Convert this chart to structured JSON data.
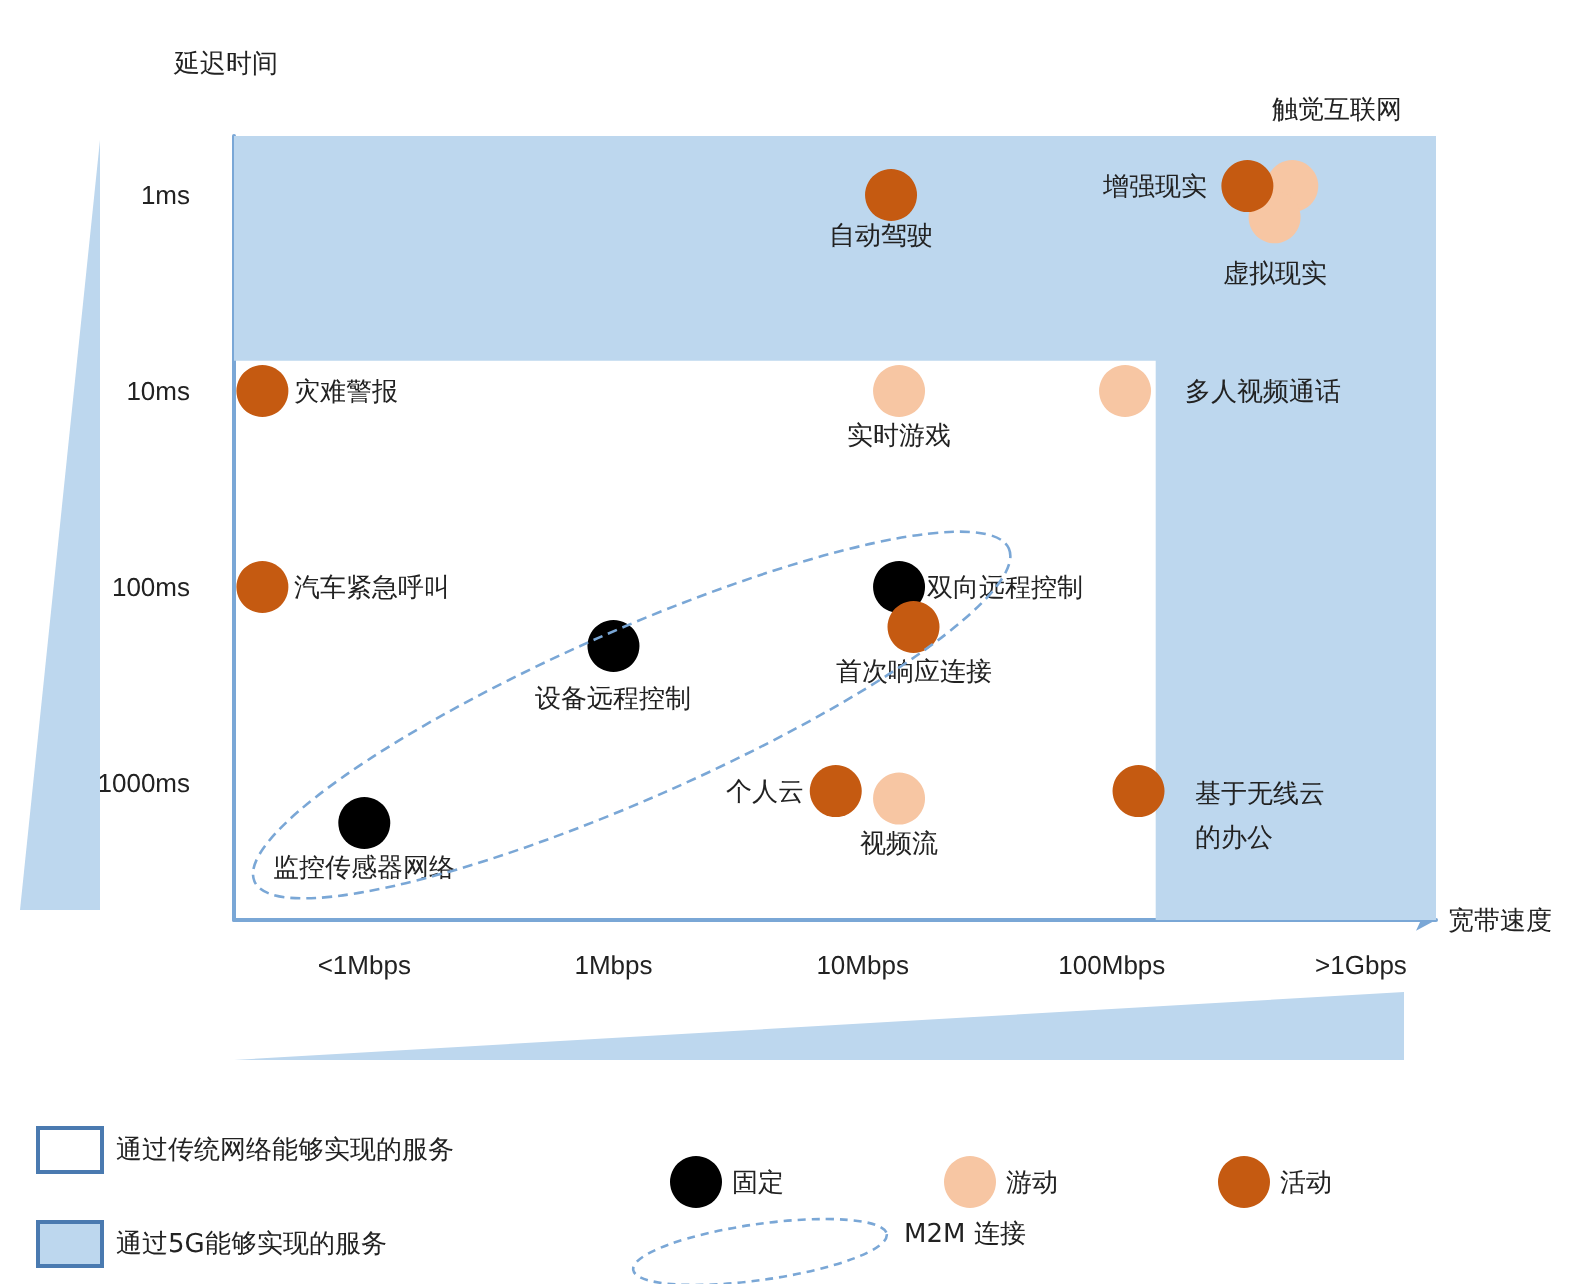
{
  "chart_data": {
    "type": "scatter",
    "xlabel": "宽带速度",
    "ylabel": "延迟时间",
    "log": "xy",
    "xlim": [
      0.03,
      2000
    ],
    "xticks": [
      {
        "value": 0.1,
        "label": "<1Mbps"
      },
      {
        "value": 1,
        "label": "1Mbps"
      },
      {
        "value": 10,
        "label": "10Mbps"
      },
      {
        "value": 100,
        "label": "100Mbps"
      },
      {
        "value": 1000,
        "label": ">1Gbps"
      }
    ],
    "ylim": [
      5000,
      0.5
    ],
    "yticks": [
      {
        "value": 1,
        "label": "1ms"
      },
      {
        "value": 10,
        "label": "10ms"
      },
      {
        "value": 100,
        "label": "100ms"
      },
      {
        "value": 1000,
        "label": "1000ms"
      }
    ],
    "grid": false,
    "legend": "bottom",
    "marker": "circle",
    "series": [
      {
        "name": "固定",
        "color": "#000000",
        "x": [
          0.1,
          1,
          14
        ],
        "values": [
          1600,
          200,
          100
        ]
      },
      {
        "name": "游动",
        "color": "#f7c6a3",
        "x": [
          14,
          113,
          530,
          450,
          14
        ],
        "values": [
          10,
          10,
          0.9,
          1.3,
          1200
        ]
      },
      {
        "name": "活动",
        "color": "#c55a11",
        "x": [
          13,
          350,
          0.039,
          0.039,
          16,
          7.8,
          128
        ],
        "values": [
          1,
          0.9,
          10,
          100,
          160,
          1100,
          1100
        ]
      }
    ],
    "bands": [
      {
        "axis": "y",
        "from": 0.5,
        "to": 7,
        "label": "通过5G能够实现的服务",
        "color": "#bdd7ee"
      },
      {
        "axis": "x",
        "from": 150,
        "to": 2000,
        "color": "#bdd7ee"
      }
    ],
    "annotations": [
      "触觉互联网",
      "通过传统网络能够实现的服务",
      "M2M 连接",
      {
        "text": "自动驾驶",
        "x": 13,
        "y": 1
      },
      {
        "text": "增强现实",
        "x": 350,
        "y": 0.9
      },
      {
        "text": "虚拟现实",
        "x": 450,
        "y": 1.3
      },
      {
        "text": "灾难警报",
        "x": 0.039,
        "y": 10
      },
      {
        "text": "实时游戏",
        "x": 14,
        "y": 10
      },
      {
        "text": "多人视频通话",
        "x": 113,
        "y": 10
      },
      {
        "text": "汽车紧急呼叫",
        "x": 0.039,
        "y": 100
      },
      {
        "text": "双向远程控制",
        "x": 14,
        "y": 100
      },
      {
        "text": "首次响应连接",
        "x": 16,
        "y": 160
      },
      {
        "text": "设备远程控制",
        "x": 1,
        "y": 200
      },
      {
        "text": "个人云",
        "x": 7.8,
        "y": 1100
      },
      {
        "text": "视频流",
        "x": 14,
        "y": 1200
      },
      {
        "text": "基于无线云的办公",
        "x": 128,
        "y": 1100
      },
      {
        "text": "监控传感器网络",
        "x": 0.1,
        "y": 1600
      }
    ]
  }
}
